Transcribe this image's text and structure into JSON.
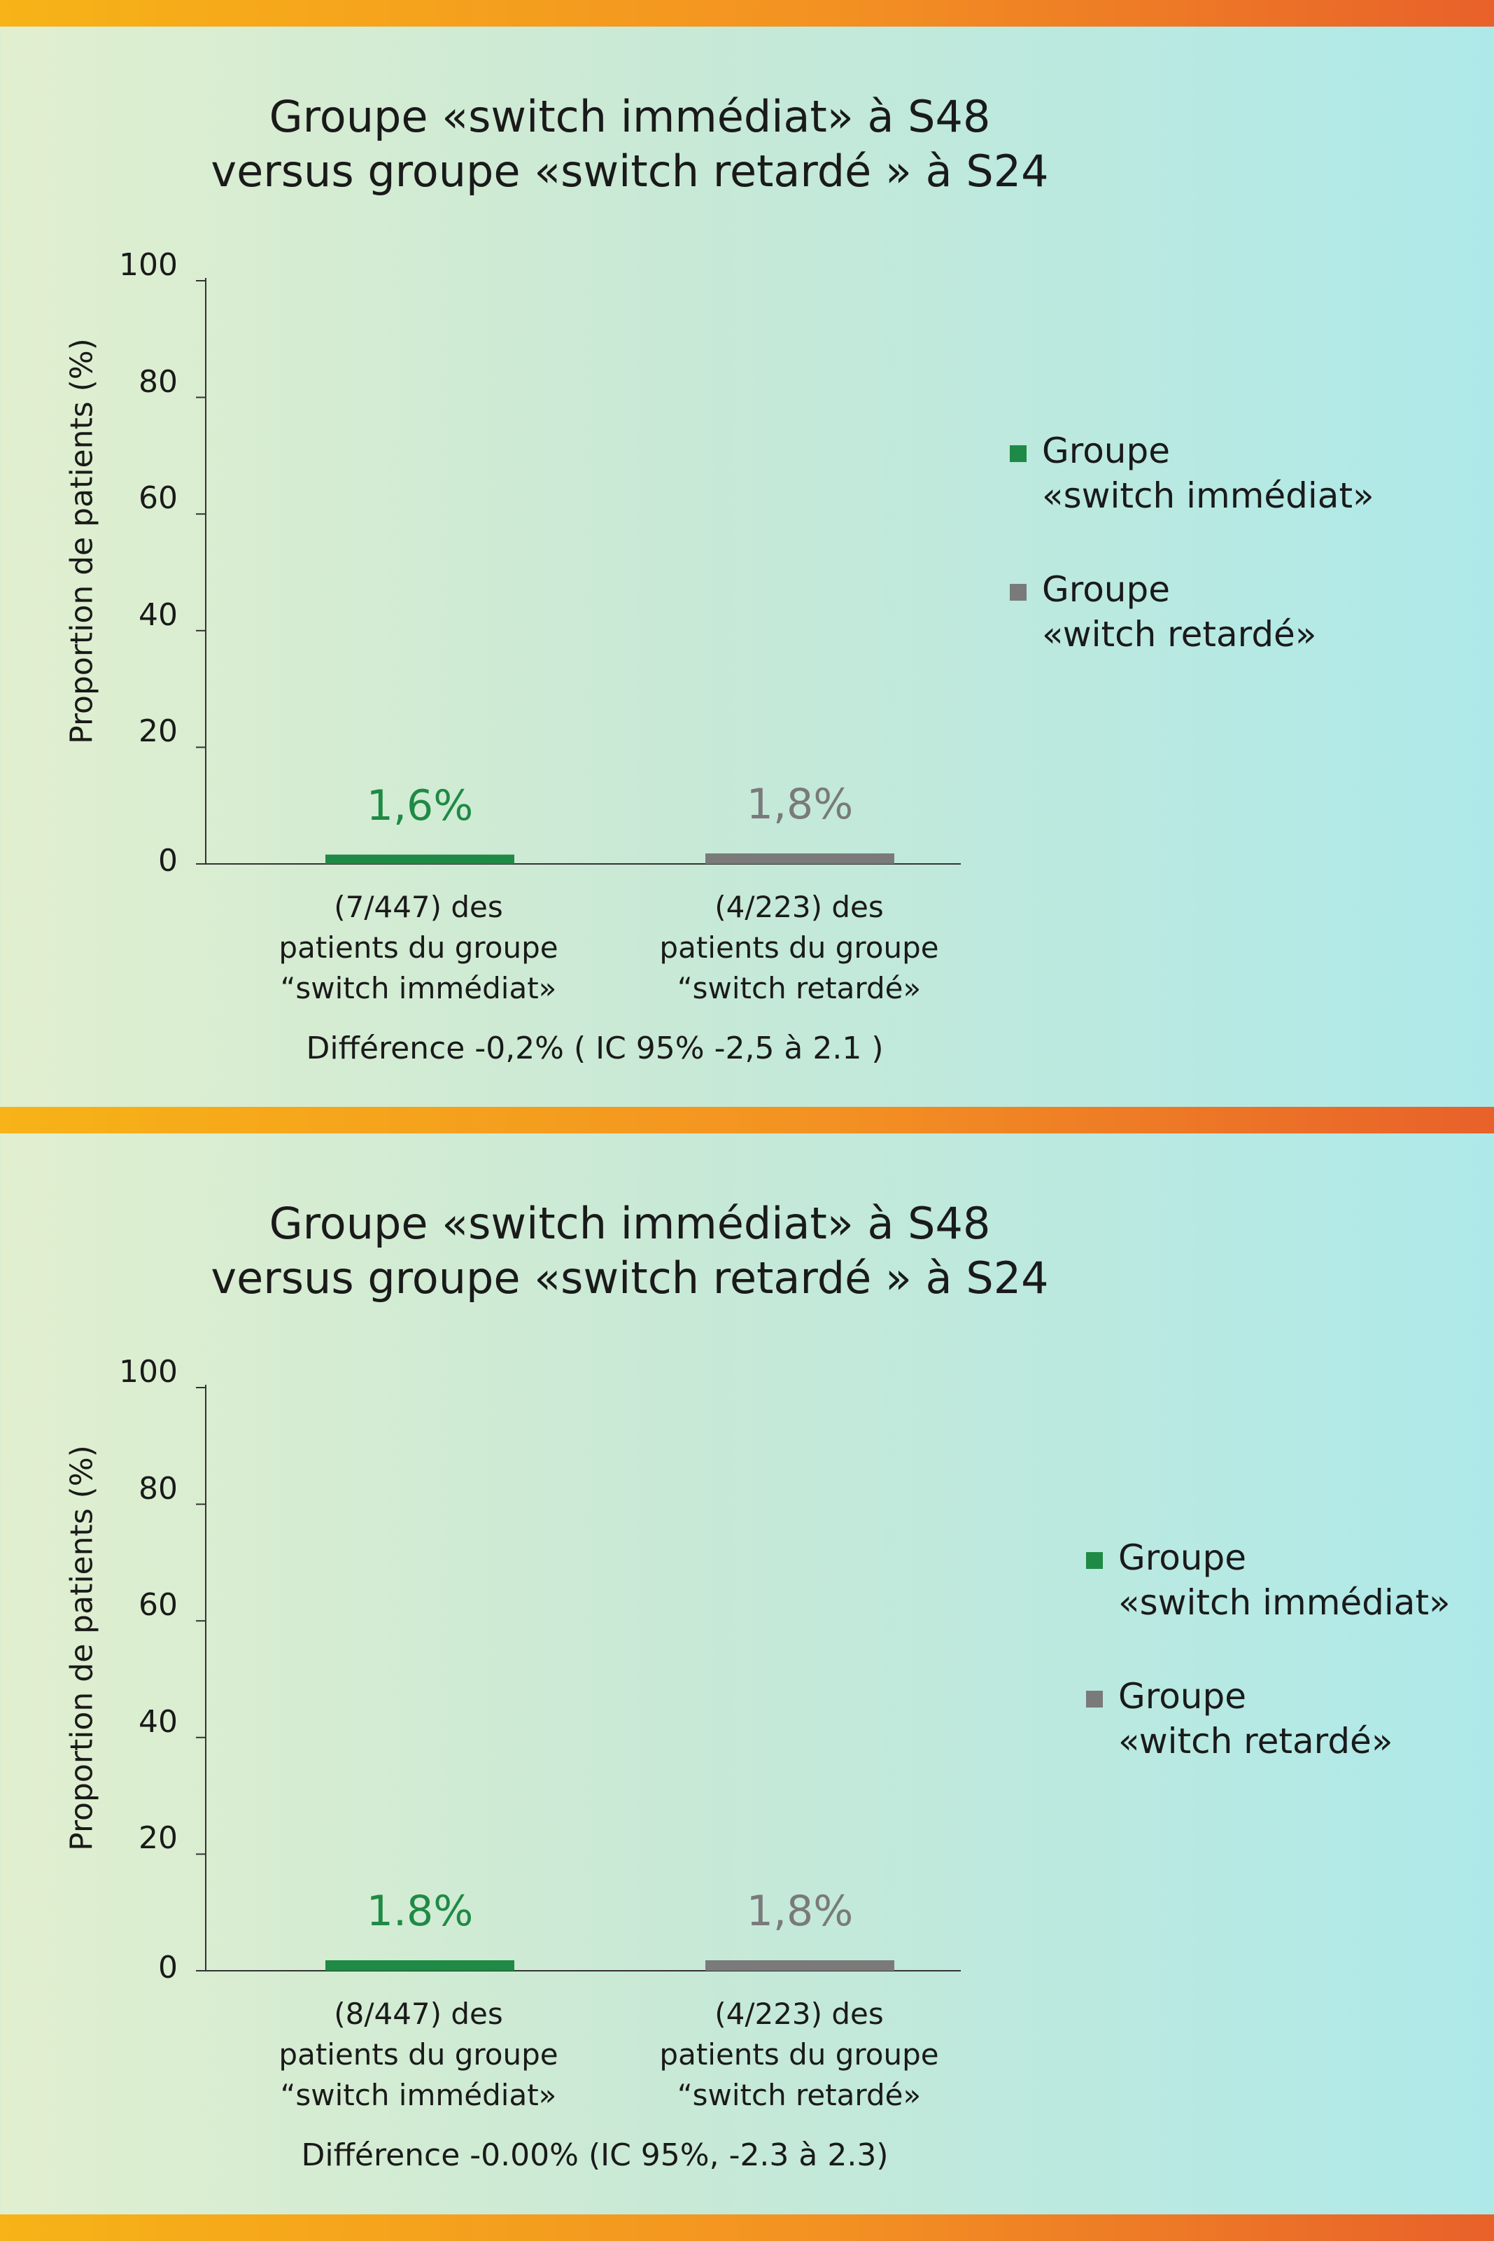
{
  "colors": {
    "green": "#1f8a45",
    "gray": "#7a7a7a",
    "stripe": "#f39222"
  },
  "panels": [
    {
      "title_line1": "Groupe «switch immédiat» à S48",
      "title_line2": "versus groupe «switch retardé » à S24",
      "difference": "Différence -0,2% ( IC 95% -2,5 à 2.1 )",
      "legend": [
        {
          "line1": "Groupe",
          "line2": "«switch immédiat»"
        },
        {
          "line1": "Groupe",
          "line2": "«witch retardé»"
        }
      ],
      "categories": [
        {
          "line1": "(7/447) des",
          "line2": "patients du groupe",
          "line3": "“switch immédiat»"
        },
        {
          "line1": "(4/223) des",
          "line2": "patients du groupe",
          "line3": "“switch retardé»"
        }
      ]
    },
    {
      "title_line1": "Groupe «switch immédiat» à S48",
      "title_line2": "versus groupe «switch retardé » à S24",
      "difference": "Différence -0.00% (IC 95%, -2.3 à 2.3)",
      "legend": [
        {
          "line1": "Groupe",
          "line2": "«switch immédiat»"
        },
        {
          "line1": "Groupe",
          "line2": "«witch retardé»"
        }
      ],
      "categories": [
        {
          "line1": "(8/447) des",
          "line2": "patients du groupe",
          "line3": "“switch immédiat»"
        },
        {
          "line1": "(4/223) des",
          "line2": "patients du groupe",
          "line3": "“switch retardé»"
        }
      ]
    }
  ],
  "chart_data": [
    {
      "type": "bar",
      "title": "Groupe «switch immédiat» à S48 versus groupe «switch retardé » à S24",
      "ylabel": "Proportion de patients (%)",
      "ylim": [
        0,
        100
      ],
      "yticks": [
        "0",
        "20",
        "40",
        "60",
        "80",
        "100"
      ],
      "grid": false,
      "legend_position": "right",
      "categories": [
        "(7/447) des patients du groupe “switch immédiat»",
        "(4/223) des patients du groupe “switch retardé»"
      ],
      "series": [
        {
          "name": "Groupe «switch immédiat»",
          "values": [
            1.6,
            null
          ],
          "color": "#1f8a45",
          "label": "1,6%"
        },
        {
          "name": "Groupe «witch retardé»",
          "values": [
            null,
            1.8
          ],
          "color": "#7a7a7a",
          "label": "1,8%"
        }
      ]
    },
    {
      "type": "bar",
      "title": "Groupe «switch immédiat» à S48 versus groupe «switch retardé » à S24",
      "ylabel": "Proportion de patients (%)",
      "ylim": [
        0,
        100
      ],
      "yticks": [
        "0",
        "20",
        "40",
        "60",
        "80",
        "100"
      ],
      "grid": false,
      "legend_position": "right",
      "categories": [
        "(8/447) des patients du groupe “switch immédiat»",
        "(4/223) des patients du groupe “switch retardé»"
      ],
      "series": [
        {
          "name": "Groupe «switch immédiat»",
          "values": [
            1.8,
            null
          ],
          "color": "#1f8a45",
          "label": "1.8%"
        },
        {
          "name": "Groupe «witch retardé»",
          "values": [
            null,
            1.8
          ],
          "color": "#7a7a7a",
          "label": "1,8%"
        }
      ]
    }
  ]
}
